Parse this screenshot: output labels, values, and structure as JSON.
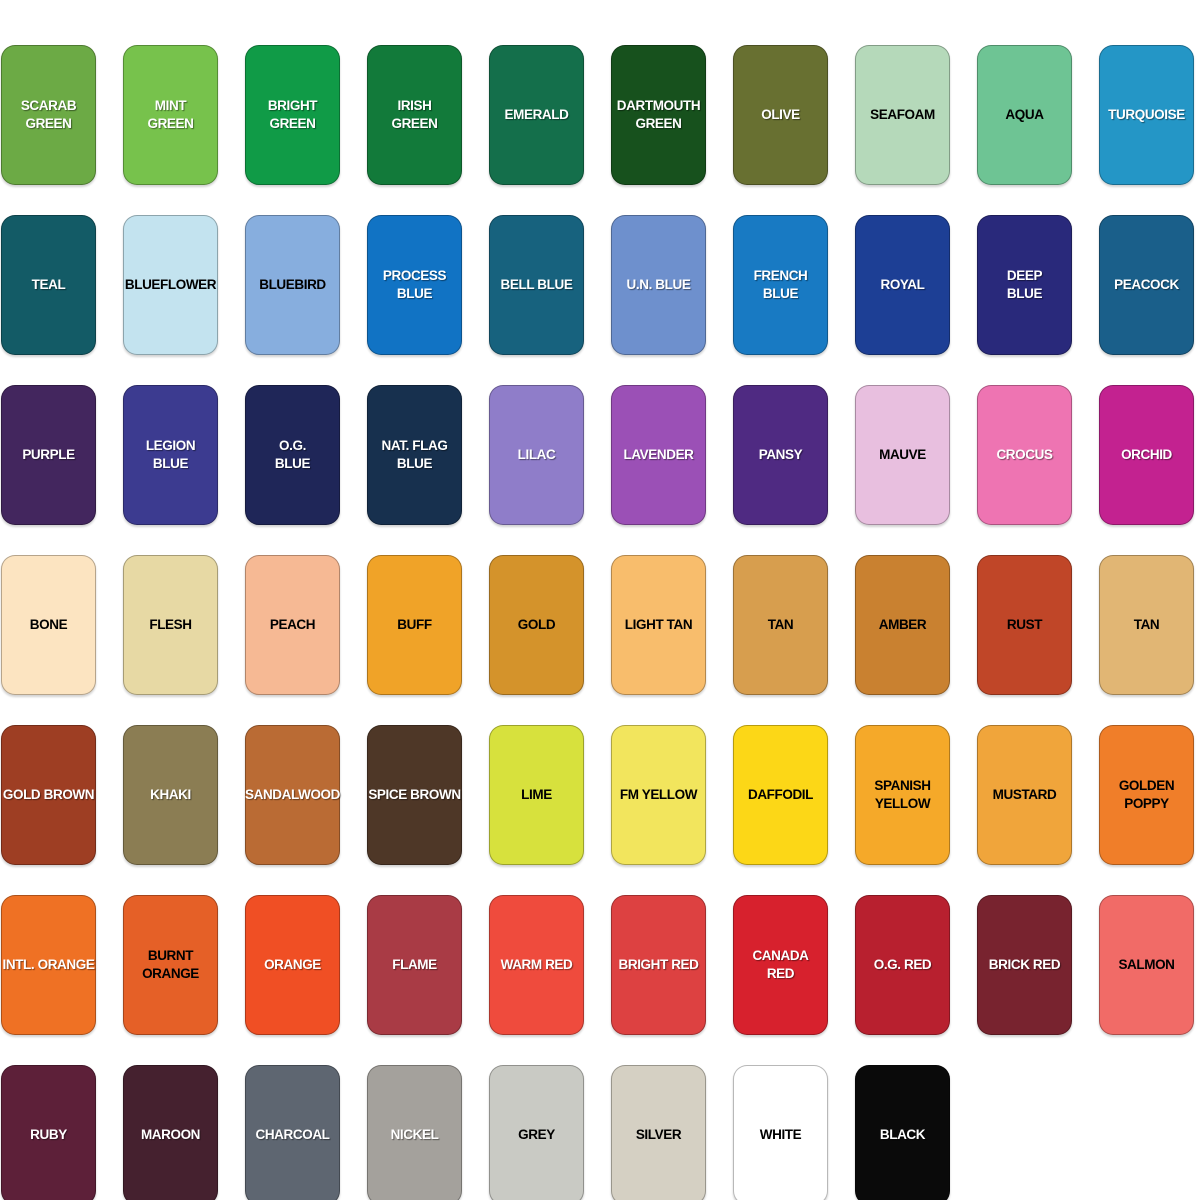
{
  "palette": {
    "rows": [
      {
        "cells": [
          {
            "label": "SCARAB\nGREEN",
            "color": "#6caa45",
            "text_color": "#ffffff"
          },
          {
            "label": "MINT\nGREEN",
            "color": "#77c24c",
            "text_color": "#ffffff"
          },
          {
            "label": "BRIGHT\nGREEN",
            "color": "#109b47",
            "text_color": "#ffffff"
          },
          {
            "label": "IRISH\nGREEN",
            "color": "#127a3a",
            "text_color": "#ffffff"
          },
          {
            "label": "EMERALD",
            "color": "#146f4b",
            "text_color": "#ffffff"
          },
          {
            "label": "DARTMOUTH\nGREEN",
            "color": "#17511d",
            "text_color": "#ffffff"
          },
          {
            "label": "OLIVE",
            "color": "#687031",
            "text_color": "#ffffff"
          },
          {
            "label": "SEAFOAM",
            "color": "#b5d9ba",
            "text_color": "#000000"
          },
          {
            "label": "AQUA",
            "color": "#6ec494",
            "text_color": "#000000"
          },
          {
            "label": "TURQUOISE",
            "color": "#2496c6",
            "text_color": "#ffffff"
          }
        ]
      },
      {
        "cells": [
          {
            "label": "TEAL",
            "color": "#135b66",
            "text_color": "#ffffff"
          },
          {
            "label": "BLUEFLOWER",
            "color": "#c3e3ef",
            "text_color": "#000000"
          },
          {
            "label": "BLUEBIRD",
            "color": "#87aede",
            "text_color": "#000000"
          },
          {
            "label": "PROCESS\nBLUE",
            "color": "#1173c4",
            "text_color": "#ffffff"
          },
          {
            "label": "BELL BLUE",
            "color": "#17627e",
            "text_color": "#ffffff"
          },
          {
            "label": "U.N. BLUE",
            "color": "#6e90cd",
            "text_color": "#ffffff"
          },
          {
            "label": "FRENCH\nBLUE",
            "color": "#187ac3",
            "text_color": "#ffffff"
          },
          {
            "label": "ROYAL",
            "color": "#1d3f95",
            "text_color": "#ffffff"
          },
          {
            "label": "DEEP\nBLUE",
            "color": "#29297b",
            "text_color": "#ffffff"
          },
          {
            "label": "PEACOCK",
            "color": "#1a5f8a",
            "text_color": "#ffffff"
          }
        ]
      },
      {
        "cells": [
          {
            "label": "PURPLE",
            "color": "#43265e",
            "text_color": "#ffffff"
          },
          {
            "label": "LEGION\nBLUE",
            "color": "#3c3b90",
            "text_color": "#ffffff"
          },
          {
            "label": "O.G.\nBLUE",
            "color": "#1f2658",
            "text_color": "#ffffff"
          },
          {
            "label": "NAT. FLAG\nBLUE",
            "color": "#17304e",
            "text_color": "#ffffff"
          },
          {
            "label": "LILAC",
            "color": "#8f7dc9",
            "text_color": "#ffffff"
          },
          {
            "label": "LAVENDER",
            "color": "#9b50b6",
            "text_color": "#ffffff"
          },
          {
            "label": "PANSY",
            "color": "#4f2a82",
            "text_color": "#ffffff"
          },
          {
            "label": "MAUVE",
            "color": "#e8bfdf",
            "text_color": "#000000"
          },
          {
            "label": "CROCUS",
            "color": "#ee74b2",
            "text_color": "#ffffff"
          },
          {
            "label": "ORCHID",
            "color": "#c32290",
            "text_color": "#ffffff"
          }
        ]
      },
      {
        "cells": [
          {
            "label": "BONE",
            "color": "#fce4c1",
            "text_color": "#000000"
          },
          {
            "label": "FLESH",
            "color": "#e7d9a4",
            "text_color": "#000000"
          },
          {
            "label": "PEACH",
            "color": "#f6b994",
            "text_color": "#000000"
          },
          {
            "label": "BUFF",
            "color": "#f0a328",
            "text_color": "#000000"
          },
          {
            "label": "GOLD",
            "color": "#d4932b",
            "text_color": "#000000"
          },
          {
            "label": "LIGHT TAN",
            "color": "#f8bd6c",
            "text_color": "#000000"
          },
          {
            "label": "TAN",
            "color": "#d79e4e",
            "text_color": "#000000"
          },
          {
            "label": "AMBER",
            "color": "#c98130",
            "text_color": "#000000"
          },
          {
            "label": "RUST",
            "color": "#c04628",
            "text_color": "#000000"
          },
          {
            "label": "TAN",
            "color": "#e1b674",
            "text_color": "#000000"
          }
        ]
      },
      {
        "cells": [
          {
            "label": "GOLD BROWN",
            "color": "#9e3e23",
            "text_color": "#ffffff"
          },
          {
            "label": "KHAKI",
            "color": "#8b7d53",
            "text_color": "#ffffff"
          },
          {
            "label": "SANDALWOOD",
            "color": "#ba6b34",
            "text_color": "#ffffff"
          },
          {
            "label": "SPICE BROWN",
            "color": "#4e3727",
            "text_color": "#ffffff"
          },
          {
            "label": "LIME",
            "color": "#d7e13d",
            "text_color": "#000000"
          },
          {
            "label": "FM YELLOW",
            "color": "#f2e55d",
            "text_color": "#000000"
          },
          {
            "label": "DAFFODIL",
            "color": "#fcd717",
            "text_color": "#000000"
          },
          {
            "label": "SPANISH\nYELLOW",
            "color": "#f5a929",
            "text_color": "#000000"
          },
          {
            "label": "MUSTARD",
            "color": "#f0a53b",
            "text_color": "#000000"
          },
          {
            "label": "GOLDEN\nPOPPY",
            "color": "#f07e29",
            "text_color": "#000000"
          }
        ]
      },
      {
        "cells": [
          {
            "label": "INTL. ORANGE",
            "color": "#ef7124",
            "text_color": "#ffffff"
          },
          {
            "label": "BURNT\nORANGE",
            "color": "#e56027",
            "text_color": "#000000"
          },
          {
            "label": "ORANGE",
            "color": "#f04f24",
            "text_color": "#ffffff"
          },
          {
            "label": "FLAME",
            "color": "#a93b45",
            "text_color": "#ffffff"
          },
          {
            "label": "WARM RED",
            "color": "#ef4b3d",
            "text_color": "#ffffff"
          },
          {
            "label": "BRIGHT RED",
            "color": "#dd4141",
            "text_color": "#ffffff"
          },
          {
            "label": "CANADA\nRED",
            "color": "#d7212d",
            "text_color": "#ffffff"
          },
          {
            "label": "O.G. RED",
            "color": "#b8202f",
            "text_color": "#ffffff"
          },
          {
            "label": "BRICK RED",
            "color": "#78232f",
            "text_color": "#ffffff"
          },
          {
            "label": "SALMON",
            "color": "#f16b67",
            "text_color": "#000000"
          }
        ]
      },
      {
        "cells": [
          {
            "label": "RUBY",
            "color": "#5d2039",
            "text_color": "#ffffff"
          },
          {
            "label": "MAROON",
            "color": "#45212f",
            "text_color": "#ffffff"
          },
          {
            "label": "CHARCOAL",
            "color": "#5e6671",
            "text_color": "#ffffff"
          },
          {
            "label": "NICKEL",
            "color": "#a4a19c",
            "text_color": "#ffffff"
          },
          {
            "label": "GREY",
            "color": "#c9cac4",
            "text_color": "#000000"
          },
          {
            "label": "SILVER",
            "color": "#d5d0c3",
            "text_color": "#000000"
          },
          {
            "label": "WHITE",
            "color": "#ffffff",
            "text_color": "#000000"
          },
          {
            "label": "BLACK",
            "color": "#0a0a0a",
            "text_color": "#ffffff"
          }
        ]
      }
    ]
  }
}
